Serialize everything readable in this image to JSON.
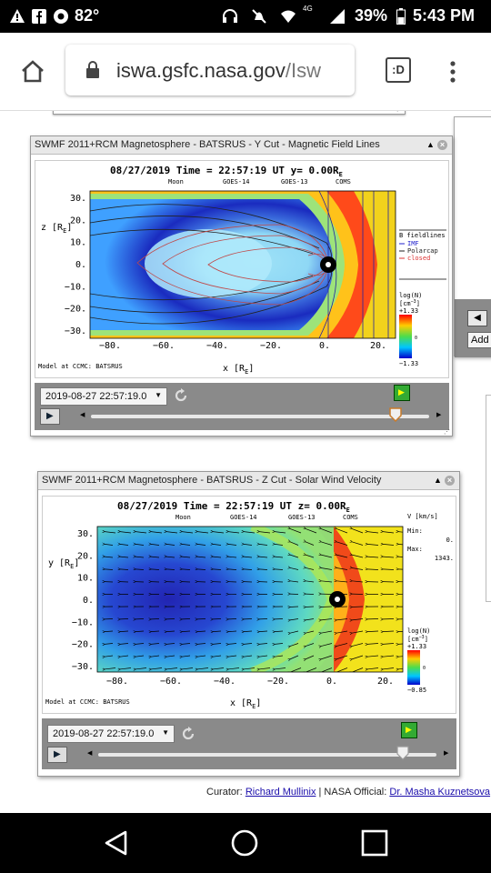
{
  "status_bar": {
    "temperature": "82°",
    "network": "4G",
    "battery": "39%",
    "time": "5:43 PM"
  },
  "browser": {
    "url_host": "iswa.gsfc.nasa.gov",
    "url_path": "/Isw",
    "tab_button": ":D"
  },
  "side_partial_button": "Add",
  "windows": [
    {
      "title": "SWMF 2011+RCM Magnetosphere - BATSRUS - Y Cut - Magnetic Field Lines",
      "plot_header": "08/27/2019 Time = 22:57:19 UT y= 0.00R",
      "header_sub": "E",
      "satellites": [
        "Moon",
        "GOES-14",
        "GOES-13",
        "COMS"
      ],
      "y_axis_label": "z [R",
      "y_axis_sub": "E",
      "y_ticks": [
        "30.",
        "20.",
        "10.",
        "0.",
        "−10.",
        "−20.",
        "−30."
      ],
      "x_ticks": [
        "−80.",
        "−60.",
        "−40.",
        "−20.",
        "0.",
        "20."
      ],
      "x_axis_label": "x [R",
      "x_axis_sub": "E",
      "legend_title": "B fieldlines",
      "legend_items": [
        {
          "label": "IMF",
          "color": "#2222cc"
        },
        {
          "label": "Polarcap",
          "color": "#222222"
        },
        {
          "label": "closed",
          "color": "#dd3333"
        }
      ],
      "colorbar_label": "log(N)",
      "colorbar_unit": "[cm",
      "colorbar_max": "+1.33",
      "colorbar_mid": "0",
      "colorbar_min": "−1.33",
      "model_text": "Model at CCMC: BATSRUS",
      "time_select": "2019-08-27 22:57:19.0",
      "slider_fraction": 0.9
    },
    {
      "title": "SWMF 2011+RCM Magnetosphere - BATSRUS - Z Cut - Solar Wind Velocity",
      "plot_header": "08/27/2019 Time = 22:57:19 UT z= 0.00R",
      "header_sub": "E",
      "satellites": [
        "Moon",
        "GOES-14",
        "GOES-13",
        "COMS"
      ],
      "y_axis_label": "y [R",
      "y_axis_sub": "E",
      "y_ticks": [
        "30.",
        "20.",
        "10.",
        "0.",
        "−10.",
        "−20.",
        "−30."
      ],
      "x_ticks": [
        "−80.",
        "−60.",
        "−40.",
        "−20.",
        "0.",
        "20."
      ],
      "x_axis_label": "x [R",
      "x_axis_sub": "E",
      "velocity_unit": "V [km/s]",
      "min_label": "Min:",
      "min_value": "0.",
      "max_label": "Max:",
      "max_value": "1343.",
      "colorbar_label": "log(N)",
      "colorbar_unit": "[cm",
      "colorbar_max": "+1.33",
      "colorbar_mid": "0",
      "colorbar_min": "−0.85",
      "model_text": "Model at CCMC: BATSRUS",
      "time_select": "2019-08-27 22:57:19.0",
      "slider_fraction": 0.9
    }
  ],
  "footer": {
    "curator_label": "Curator:",
    "curator_name": "Richard Mullinix",
    "official_label": "| NASA Official:",
    "official_name": "Dr. Masha Kuznetsova"
  },
  "colors": {
    "bar_bg": "#000000",
    "control_bar": "#8a8a8a",
    "link": "#1a0dab",
    "plot_yellow": "#f2d21c"
  }
}
